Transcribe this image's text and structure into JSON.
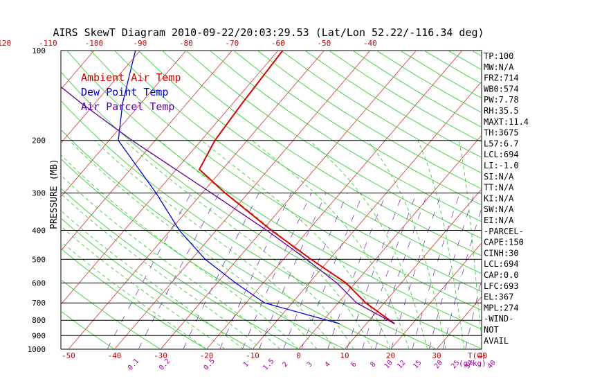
{
  "chart_data": {
    "type": "line",
    "title": "AIRS SkewT Diagram 2010-09-22/20:03:29.53 (Lat/Lon 52.22/-116.34 deg)",
    "ylabel": "PRESSURE (MB)",
    "xlabel_bottom": "T(C)",
    "mixing_ratio_unit": "(g/kg)",
    "y_scale": "log",
    "ylim": [
      1000,
      100
    ],
    "xlim_surface": [
      -50,
      40
    ],
    "pressure_ticks": [
      100,
      200,
      300,
      400,
      500,
      600,
      700,
      800,
      900,
      1000
    ],
    "isobar_lines": [
      200,
      300,
      400,
      500,
      600,
      700,
      800,
      900
    ],
    "bottom_temp_ticks": [
      -50,
      -40,
      -30,
      -20,
      -10,
      0,
      10,
      20,
      30,
      40
    ],
    "top_temp_ticks": [
      -120,
      -110,
      -100,
      -90,
      -80,
      -70,
      -60,
      -50,
      -40
    ],
    "mixing_ratio_labels": [
      "0.1",
      "0.2",
      "0.5",
      "1",
      "1.5",
      "2",
      "3",
      "4",
      "6",
      "8",
      "10",
      "12",
      "15",
      "20",
      "25",
      "30",
      "40"
    ],
    "grid": true,
    "legend_position": "top-left",
    "series": [
      {
        "name": "Ambient Air Temp",
        "color": "#e00000",
        "points": [
          {
            "p": 820,
            "t": 16
          },
          {
            "p": 700,
            "t": 6
          },
          {
            "p": 600,
            "t": -2
          },
          {
            "p": 500,
            "t": -14
          },
          {
            "p": 400,
            "t": -28
          },
          {
            "p": 300,
            "t": -45
          },
          {
            "p": 250,
            "t": -55
          },
          {
            "p": 200,
            "t": -57
          },
          {
            "p": 150,
            "t": -58
          },
          {
            "p": 100,
            "t": -59
          }
        ]
      },
      {
        "name": "Dew Point Temp",
        "color": "#0000e0",
        "points": [
          {
            "p": 820,
            "t": 4
          },
          {
            "p": 700,
            "t": -16
          },
          {
            "p": 600,
            "t": -26
          },
          {
            "p": 500,
            "t": -37
          },
          {
            "p": 400,
            "t": -48
          },
          {
            "p": 300,
            "t": -60
          },
          {
            "p": 200,
            "t": -78
          },
          {
            "p": 150,
            "t": -84
          },
          {
            "p": 100,
            "t": -91
          }
        ]
      },
      {
        "name": "Air Parcel Temp",
        "color": "#6000a0",
        "points": [
          {
            "p": 820,
            "t": 16
          },
          {
            "p": 700,
            "t": 4
          },
          {
            "p": 600,
            "t": -4
          },
          {
            "p": 500,
            "t": -15
          },
          {
            "p": 400,
            "t": -29
          },
          {
            "p": 300,
            "t": -48
          },
          {
            "p": 200,
            "t": -75
          },
          {
            "p": 150,
            "t": -93
          },
          {
            "p": 100,
            "t": -117
          }
        ]
      }
    ],
    "indices": [
      "TP:100",
      "MW:N/A",
      "FRZ:714",
      "WB0:574",
      "PW:7.78",
      "RH:35.5",
      "MAXT:11.4",
      "TH:3675",
      "L57:6.7",
      "LCL:694",
      "LI:-1.0",
      "SI:N/A",
      "TT:N/A",
      "KI:N/A",
      "SW:N/A",
      "EI:N/A",
      "-PARCEL-",
      "CAPE:150",
      "CINH:30",
      "LCL:694",
      "CAP:0.0",
      "LFC:693",
      "EL:367",
      "MPL:274",
      "-WIND-",
      "NOT",
      "AVAIL"
    ]
  }
}
